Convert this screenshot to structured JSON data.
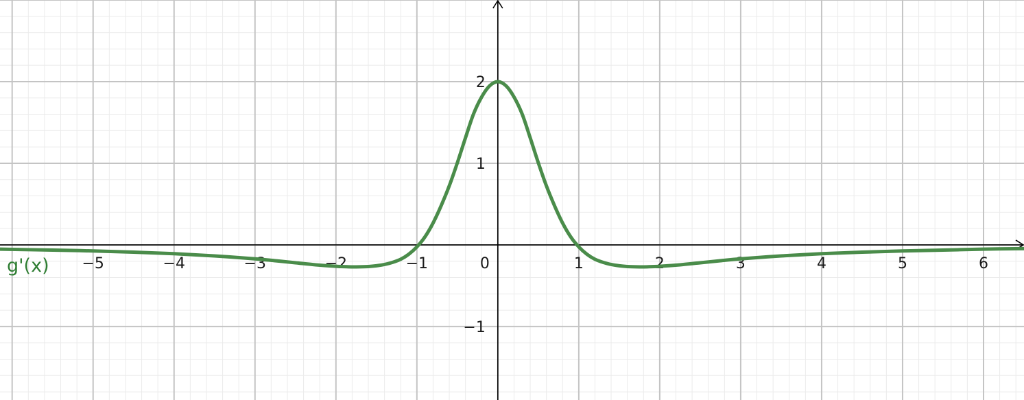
{
  "chart_data": {
    "type": "line",
    "title": "",
    "xlabel": "",
    "ylabel": "",
    "xlim": [
      -6.15,
      6.5
    ],
    "ylim": [
      -1.9,
      3.0
    ],
    "grid": true,
    "x_ticks": [
      -5,
      -4,
      -3,
      -2,
      -1,
      0,
      1,
      2,
      3,
      4,
      5,
      6
    ],
    "x_tick_labels": [
      "−5",
      "−4",
      "−3",
      "−2",
      "−1",
      "0",
      "1",
      "2",
      "3",
      "4",
      "5",
      "6"
    ],
    "y_ticks": [
      2,
      1,
      -1
    ],
    "y_tick_labels": [
      "2",
      "1",
      "−1"
    ],
    "series": [
      {
        "name": "g'(x)",
        "color": "#4a8c4a",
        "label_color": "#2e7d32",
        "x": [
          -6.15,
          -5.5,
          -5,
          -4.5,
          -4,
          -3.5,
          -3,
          -2.75,
          -2.5,
          -2.25,
          -2,
          -1.85,
          -1.75,
          -1.6,
          -1.5,
          -1.4,
          -1.3,
          -1.2,
          -1.1,
          -1,
          -0.9,
          -0.8,
          -0.7,
          -0.6,
          -0.5,
          -0.4,
          -0.3,
          -0.2,
          -0.1,
          0,
          0.1,
          0.2,
          0.3,
          0.4,
          0.5,
          0.6,
          0.7,
          0.8,
          0.9,
          1,
          1.1,
          1.2,
          1.3,
          1.4,
          1.5,
          1.6,
          1.75,
          1.85,
          2,
          2.25,
          2.5,
          2.75,
          3,
          3.5,
          4,
          4.5,
          5,
          5.5,
          6,
          6.5
        ],
        "y": [
          -0.052,
          -0.064,
          -0.074,
          -0.089,
          -0.108,
          -0.135,
          -0.171,
          -0.194,
          -0.219,
          -0.244,
          -0.262,
          -0.268,
          -0.269,
          -0.265,
          -0.256,
          -0.24,
          -0.214,
          -0.176,
          -0.114,
          -0.024,
          0.099,
          0.268,
          0.481,
          0.723,
          1.006,
          1.311,
          1.604,
          1.812,
          1.95,
          2.0,
          1.95,
          1.812,
          1.604,
          1.311,
          1.006,
          0.723,
          0.481,
          0.268,
          0.099,
          -0.024,
          -0.114,
          -0.176,
          -0.214,
          -0.24,
          -0.256,
          -0.265,
          -0.269,
          -0.268,
          -0.262,
          -0.244,
          -0.219,
          -0.194,
          -0.171,
          -0.135,
          -0.108,
          -0.089,
          -0.074,
          -0.064,
          -0.052,
          -0.046
        ]
      }
    ]
  }
}
